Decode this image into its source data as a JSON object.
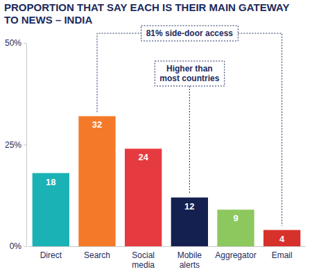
{
  "chart_data": {
    "type": "bar",
    "title": "PROPORTION THAT SAY EACH IS THEIR MAIN GATEWAY TO NEWS – INDIA",
    "categories": [
      "Direct",
      "Search",
      "Social media",
      "Mobile alerts",
      "Aggregator",
      "Email"
    ],
    "values": [
      18,
      32,
      24,
      12,
      9,
      4
    ],
    "colors": [
      "#1ab2b4",
      "#f47a2a",
      "#e53a40",
      "#14204f",
      "#8dc85e",
      "#d7312b"
    ],
    "ylim": [
      0,
      50
    ],
    "yticks": [
      {
        "value": 0,
        "label": "0%"
      },
      {
        "value": 25,
        "label": "25%"
      },
      {
        "value": 50,
        "label": "50%"
      }
    ],
    "grid": false,
    "data_labels": true,
    "annotations": [
      "81% side-door access",
      "Higher than most countries"
    ]
  }
}
